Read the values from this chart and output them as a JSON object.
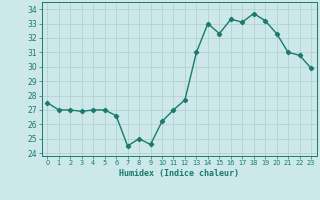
{
  "x": [
    0,
    1,
    2,
    3,
    4,
    5,
    6,
    7,
    8,
    9,
    10,
    11,
    12,
    13,
    14,
    15,
    16,
    17,
    18,
    19,
    20,
    21,
    22,
    23
  ],
  "y": [
    27.5,
    27.0,
    27.0,
    26.9,
    27.0,
    27.0,
    26.6,
    24.5,
    25.0,
    24.6,
    26.2,
    27.0,
    27.7,
    31.0,
    33.0,
    32.3,
    33.3,
    33.1,
    33.7,
    33.2,
    32.3,
    31.0,
    30.8,
    29.9
  ],
  "line_color": "#1a7a6e",
  "bg_color": "#cce8e8",
  "grid_color": "#b0cccc",
  "xlabel": "Humidex (Indice chaleur)",
  "ylim": [
    23.8,
    34.5
  ],
  "yticks": [
    24,
    25,
    26,
    27,
    28,
    29,
    30,
    31,
    32,
    33,
    34
  ],
  "xticks": [
    0,
    1,
    2,
    3,
    4,
    5,
    6,
    7,
    8,
    9,
    10,
    11,
    12,
    13,
    14,
    15,
    16,
    17,
    18,
    19,
    20,
    21,
    22,
    23
  ],
  "marker": "D",
  "marker_size": 2.2,
  "line_width": 1.0
}
